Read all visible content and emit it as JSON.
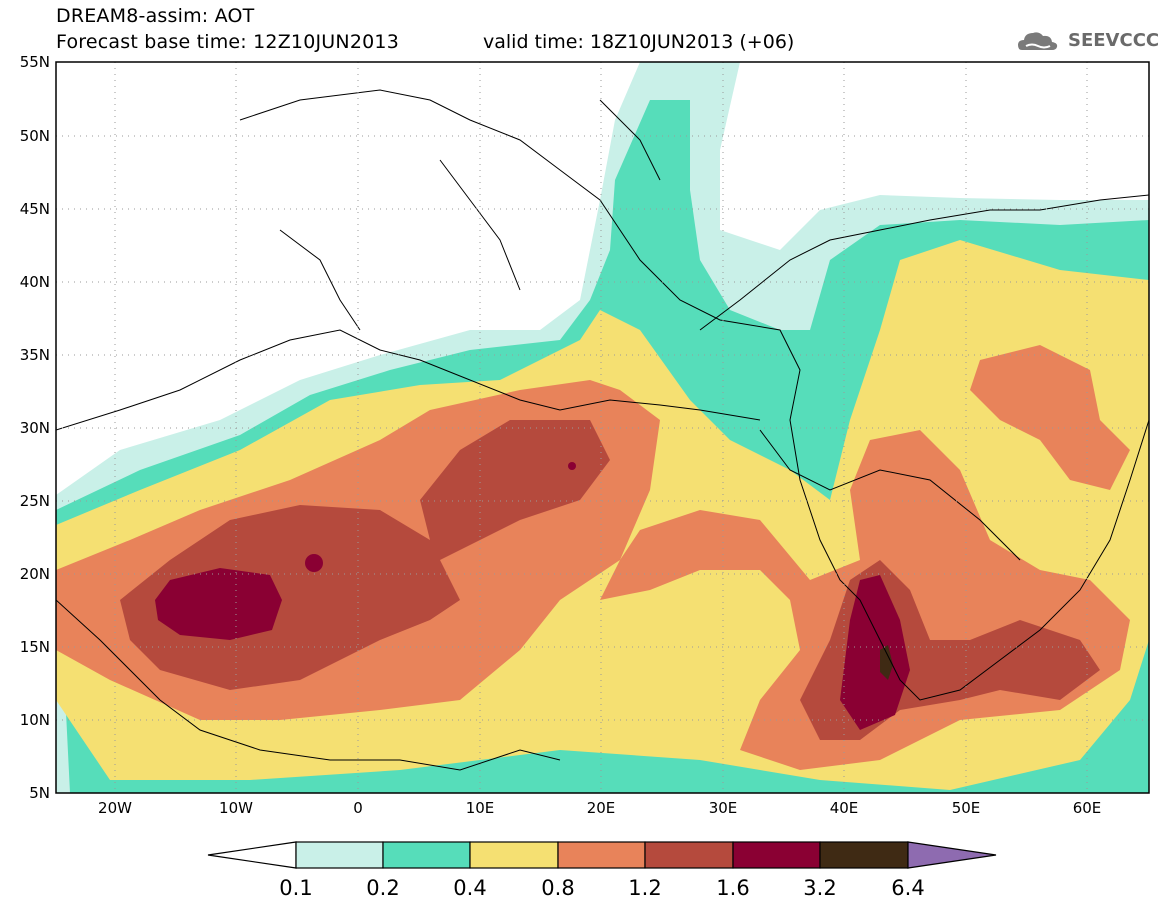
{
  "header": {
    "title_line1": "DREAM8-assim: AOT",
    "title_line2": "Forecast base time: 12Z10JUN2013",
    "valid_time": "valid time: 18Z10JUN2013 (+06)",
    "logo_text": "SEEVCCC"
  },
  "map": {
    "lat_labels": [
      "55N",
      "50N",
      "45N",
      "40N",
      "35N",
      "30N",
      "25N",
      "20N",
      "15N",
      "10N",
      "5N"
    ],
    "lon_labels": [
      "20W",
      "10W",
      "0",
      "10E",
      "20E",
      "30E",
      "40E",
      "50E",
      "60E"
    ],
    "colors": {
      "c01": "#c9f0e8",
      "c02": "#56ddba",
      "c04": "#f5e072",
      "c08": "#e8835a",
      "c12": "#b54a3d",
      "c16": "#8a0033",
      "c32": "#3f2a14",
      "c64": "#8e6bb0"
    }
  },
  "legend": {
    "labels": [
      "0.1",
      "0.2",
      "0.4",
      "0.8",
      "1.2",
      "1.6",
      "3.2",
      "6.4"
    ]
  }
}
